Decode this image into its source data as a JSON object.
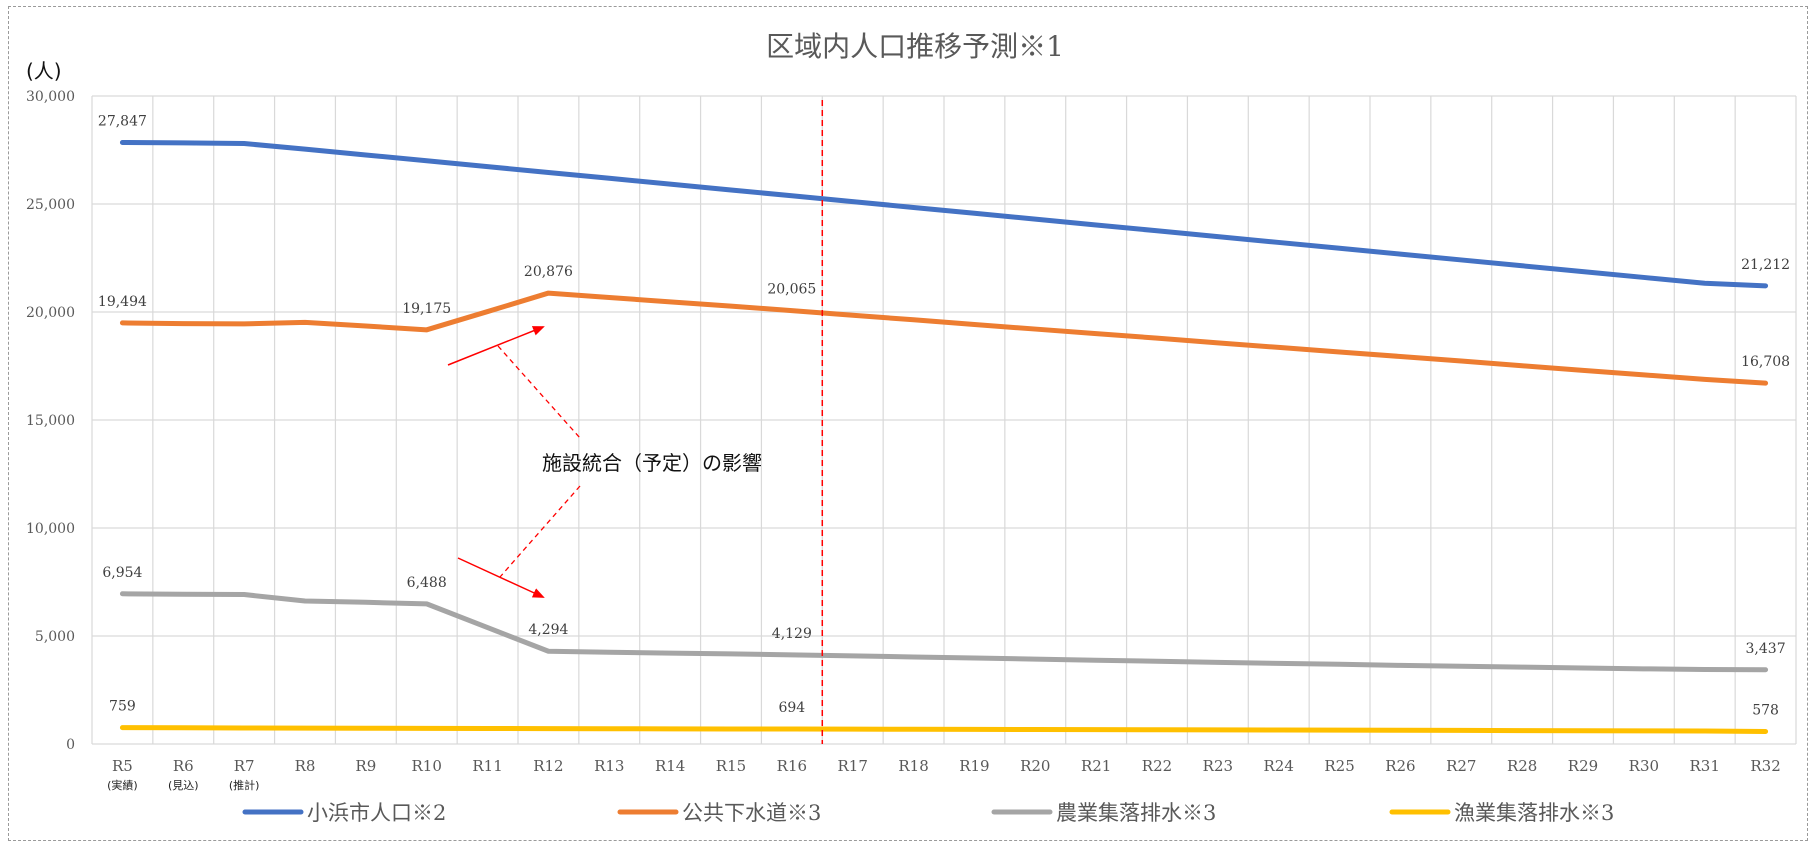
{
  "chart_data": {
    "type": "line",
    "title": "区域内人口推移予測※1",
    "ylabel": "(人)",
    "ylim": [
      0,
      30000
    ],
    "yticks": [
      "0",
      "5,000",
      "10,000",
      "15,000",
      "20,000",
      "25,000",
      "30,000"
    ],
    "categories": [
      "R5",
      "R6",
      "R7",
      "R8",
      "R9",
      "R10",
      "R11",
      "R12",
      "R13",
      "R14",
      "R15",
      "R16",
      "R17",
      "R18",
      "R19",
      "R20",
      "R21",
      "R22",
      "R23",
      "R24",
      "R25",
      "R26",
      "R27",
      "R28",
      "R29",
      "R30",
      "R31",
      "R32"
    ],
    "category_notes": [
      "(実績)",
      "(見込)",
      "(推計)"
    ],
    "grid": true,
    "legend_position": "bottom",
    "marker_line": {
      "after_category": "R16",
      "color": "#ff0000",
      "style": "dashed"
    },
    "series": [
      {
        "name": "小浜市人口※2",
        "color": "#4472c4",
        "values": [
          27847,
          27830,
          27800,
          27540,
          27270,
          27000,
          26730,
          26460,
          26190,
          25920,
          25650,
          25380,
          25110,
          24840,
          24570,
          24300,
          24030,
          23760,
          23490,
          23220,
          22950,
          22680,
          22410,
          22140,
          21870,
          21600,
          21330,
          21212
        ],
        "labels": [
          [
            "R5",
            "27,847"
          ],
          [
            "R32",
            "21,212"
          ]
        ]
      },
      {
        "name": "公共下水道※3",
        "color": "#ed7d31",
        "values": [
          19494,
          19460,
          19450,
          19520,
          19350,
          19175,
          20020,
          20876,
          20670,
          20470,
          20270,
          20065,
          19850,
          19640,
          19420,
          19210,
          19000,
          18790,
          18570,
          18360,
          18150,
          17940,
          17730,
          17510,
          17300,
          17090,
          16880,
          16708
        ],
        "labels": [
          [
            "R5",
            "19,494"
          ],
          [
            "R10",
            "19,175"
          ],
          [
            "R12",
            "20,876"
          ],
          [
            "R16",
            "20,065"
          ],
          [
            "R32",
            "16,708"
          ]
        ]
      },
      {
        "name": "農業集落排水※3",
        "color": "#a5a5a5",
        "values": [
          6954,
          6930,
          6920,
          6620,
          6560,
          6488,
          5390,
          4294,
          4250,
          4210,
          4170,
          4129,
          4080,
          4030,
          3980,
          3930,
          3880,
          3830,
          3780,
          3730,
          3690,
          3640,
          3600,
          3560,
          3520,
          3480,
          3450,
          3437
        ],
        "labels": [
          [
            "R5",
            "6,954"
          ],
          [
            "R10",
            "6,488"
          ],
          [
            "R12",
            "4,294"
          ],
          [
            "R16",
            "4,129"
          ],
          [
            "R32",
            "3,437"
          ]
        ]
      },
      {
        "name": "漁業集落排水※3",
        "color": "#ffc000",
        "values": [
          759,
          750,
          742,
          735,
          730,
          724,
          718,
          712,
          706,
          700,
          697,
          694,
          688,
          682,
          676,
          670,
          664,
          658,
          652,
          646,
          640,
          634,
          628,
          622,
          616,
          610,
          600,
          578
        ],
        "labels": [
          [
            "R5",
            "759"
          ],
          [
            "R16",
            "694"
          ],
          [
            "R32",
            "578"
          ]
        ]
      }
    ],
    "annotation": "施設統合（予定）の影響"
  }
}
